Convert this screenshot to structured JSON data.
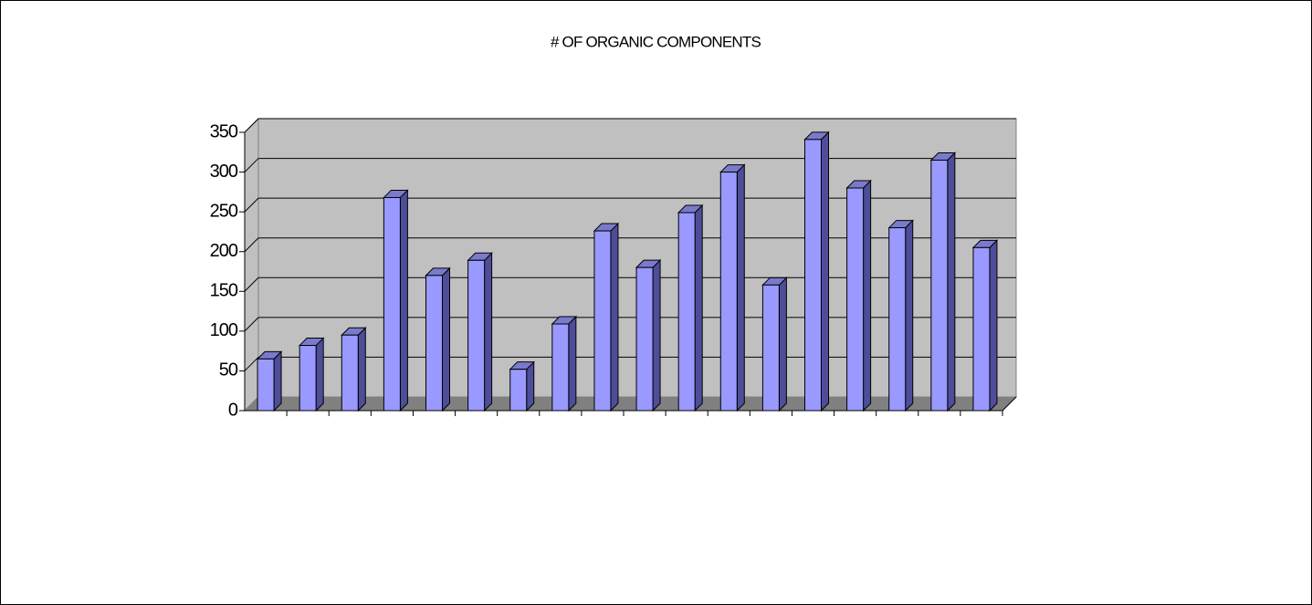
{
  "chart_data": {
    "type": "bar3d",
    "title": "# OF ORGANIC COMPONENTS",
    "categories": [
      null,
      null,
      null,
      null,
      null,
      null,
      null,
      null,
      null,
      null,
      null,
      null,
      null,
      null,
      null,
      null,
      null,
      null
    ],
    "values": [
      65,
      82,
      95,
      268,
      170,
      189,
      52,
      109,
      226,
      180,
      249,
      300,
      158,
      341,
      280,
      230,
      315,
      205
    ],
    "color": "#9999ff",
    "ylim": [
      0,
      350
    ],
    "yticks": [
      0,
      50,
      100,
      150,
      200,
      250,
      300,
      350
    ],
    "grid": true
  }
}
